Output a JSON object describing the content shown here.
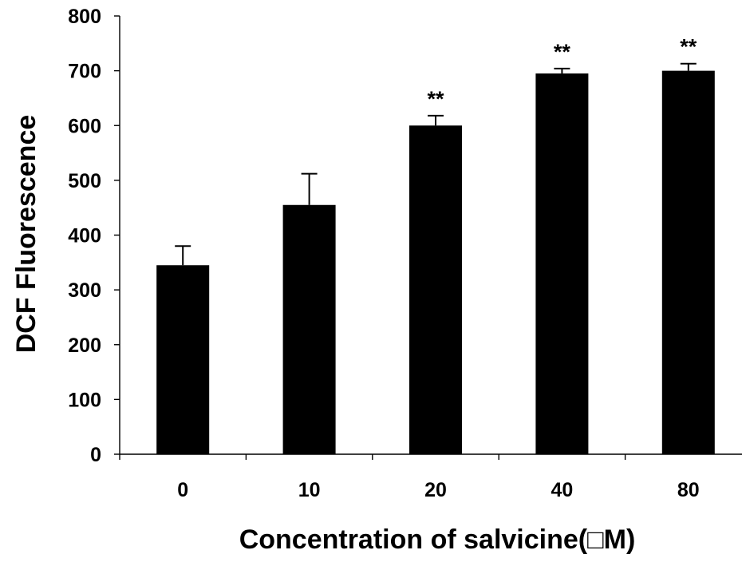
{
  "chart_data": {
    "type": "bar",
    "title": "",
    "xlabel": "Concentration of salvicine(□M)",
    "ylabel": "DCF Fluorescence",
    "categories": [
      "0",
      "10",
      "20",
      "40",
      "80"
    ],
    "values": [
      345,
      455,
      600,
      695,
      700
    ],
    "error_upper": [
      380,
      512,
      618,
      704,
      713
    ],
    "annotations": [
      "",
      "",
      "**",
      "**",
      "**"
    ],
    "ylim": [
      0,
      800
    ],
    "yticks": [
      0,
      100,
      200,
      300,
      400,
      500,
      600,
      700,
      800
    ],
    "grid": false,
    "legend": "none",
    "bar_color": "#000000"
  }
}
